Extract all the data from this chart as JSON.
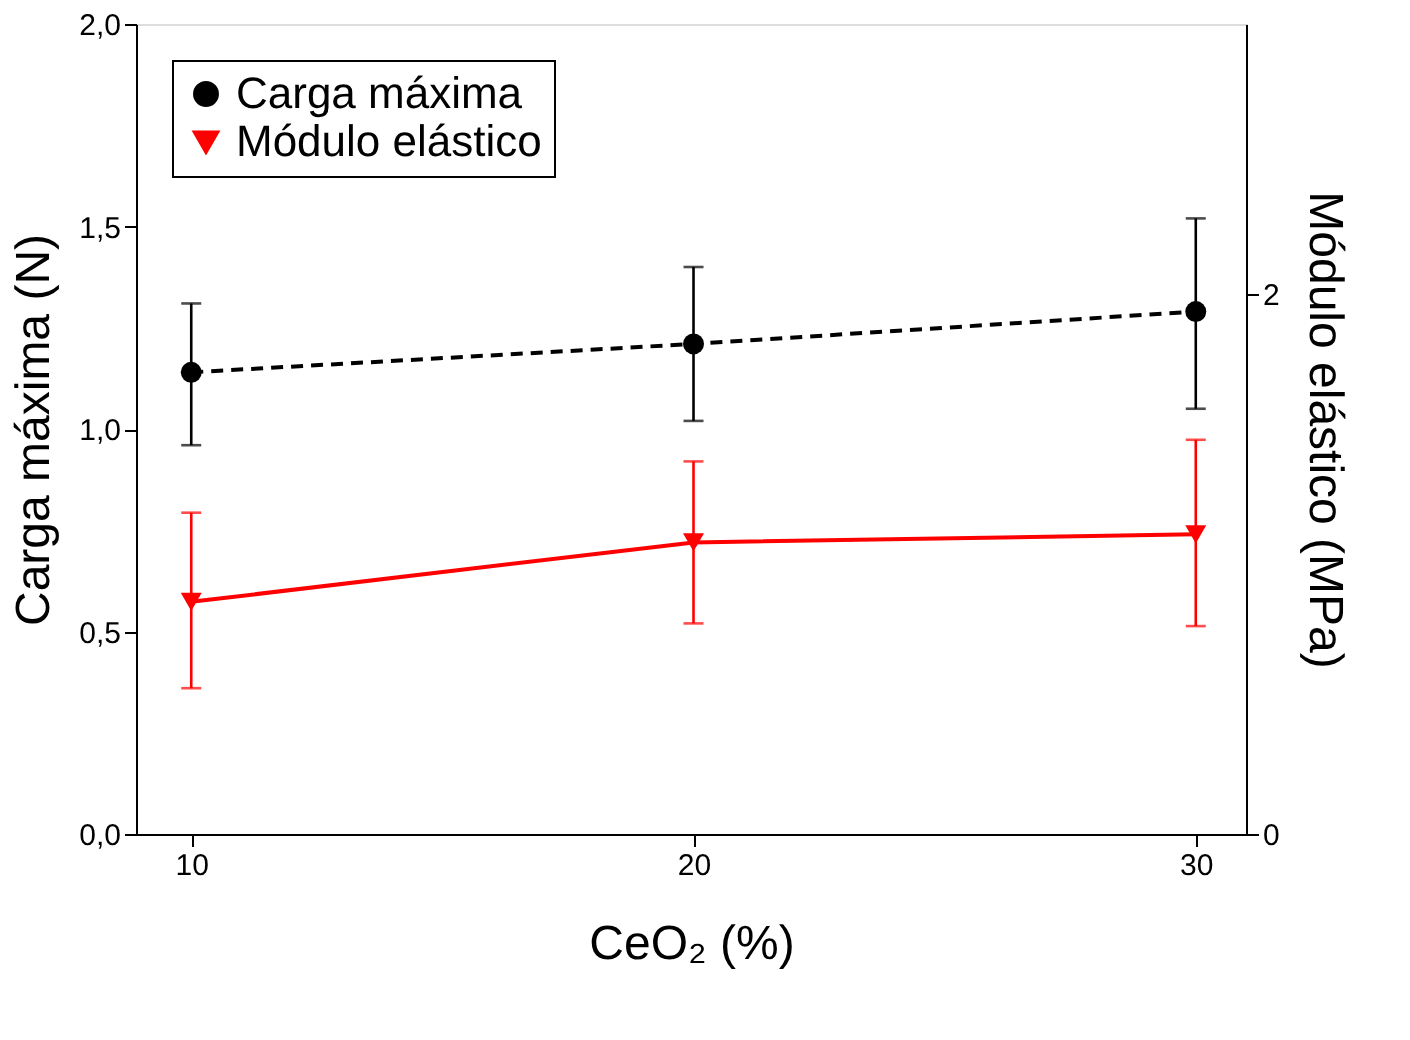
{
  "chart_data": {
    "type": "line",
    "xlabel": "CeO₂ (%)",
    "ylabel": "Carga máxima (N)",
    "y2label": "Módulo elástico (MPa)",
    "x": [
      10,
      20,
      30
    ],
    "series": [
      {
        "name": "Carga máxima",
        "color": "#000000",
        "values": [
          1.14,
          1.21,
          1.29
        ],
        "errors": [
          [
            0.96,
            1.31
          ],
          [
            1.02,
            1.4
          ],
          [
            1.05,
            1.52
          ]
        ],
        "marker": "circle",
        "line_style": "dashed"
      },
      {
        "name": "Módulo elástico",
        "color": "#ff0000",
        "axis": "y2",
        "values": [
          0.86,
          1.08,
          1.11
        ],
        "errors": [
          [
            0.54,
            1.19
          ],
          [
            0.78,
            1.38
          ],
          [
            0.77,
            1.46
          ]
        ],
        "marker": "triangle",
        "line_style": "solid"
      }
    ],
    "xlim": [
      8.9,
      31
    ],
    "xticks": [
      10,
      20,
      30
    ],
    "ylim": [
      0,
      2
    ],
    "yticks": [
      {
        "value": 0,
        "label": "0,0"
      },
      {
        "value": 0.5,
        "label": "0,5"
      },
      {
        "value": 1,
        "label": "1,0"
      },
      {
        "value": 1.5,
        "label": "1,5"
      },
      {
        "value": 2,
        "label": "2,0"
      }
    ],
    "y2lim": [
      0,
      3
    ],
    "y2ticks": [
      0,
      2
    ],
    "legend": "top left",
    "grid": false
  }
}
